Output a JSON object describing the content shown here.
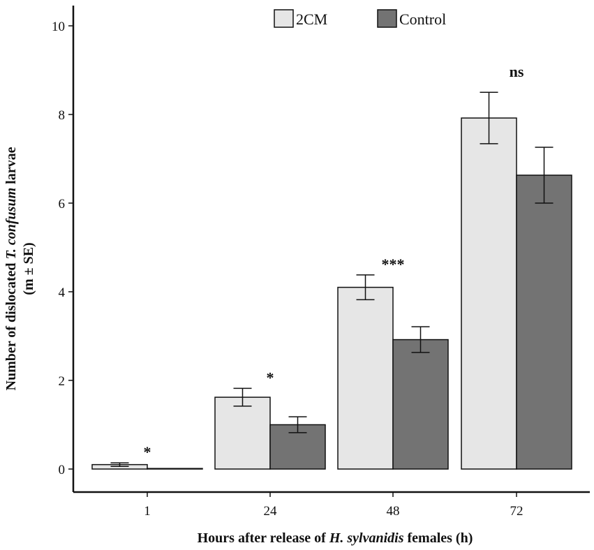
{
  "chart_data": {
    "type": "bar",
    "categories": [
      "1",
      "24",
      "48",
      "72"
    ],
    "series": [
      {
        "name": "2CM",
        "values": [
          0.1,
          1.62,
          4.1,
          7.92
        ],
        "se": [
          0.04,
          0.2,
          0.28,
          0.58
        ],
        "color": "#e6e6e6"
      },
      {
        "name": "Control",
        "values": [
          0.0,
          1.0,
          2.92,
          6.63
        ],
        "se": [
          0.0,
          0.18,
          0.29,
          0.63
        ],
        "color": "#737373"
      }
    ],
    "significance": [
      "*",
      "*",
      "***",
      "ns"
    ],
    "xlabel_parts": [
      {
        "text": "Hours after release of ",
        "italic": false
      },
      {
        "text": "H. sylvanidis",
        "italic": true
      },
      {
        "text": " females (h)",
        "italic": false
      }
    ],
    "ylabel_line1_parts": [
      {
        "text": "Number of dislocated ",
        "italic": false
      },
      {
        "text": "T. confusum",
        "italic": true
      },
      {
        "text": " larvae",
        "italic": false
      }
    ],
    "ylabel_line2": "(m ± SE)",
    "ylim": [
      0,
      10
    ],
    "yticks": [
      0,
      2,
      4,
      6,
      8,
      10
    ],
    "legend_position": "top-center"
  }
}
